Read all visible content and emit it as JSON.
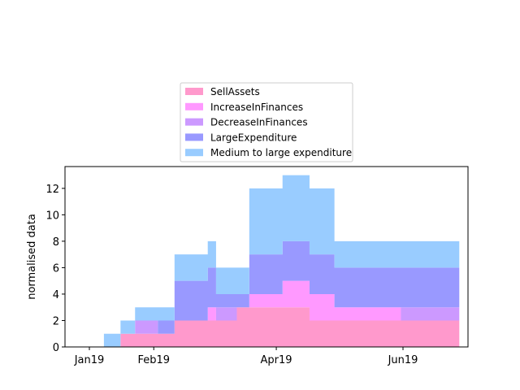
{
  "chart_data": {
    "type": "area",
    "stacked": true,
    "step": true,
    "xlabel": "",
    "ylabel": "normalised data",
    "x_ticks": [
      "Jan19",
      "Feb19",
      "Apr19",
      "Jun19"
    ],
    "y_ticks": [
      "0",
      "2",
      "4",
      "6",
      "8",
      "10",
      "12"
    ],
    "ylim": [
      0,
      13.65
    ],
    "grid": false,
    "legend_position": "above plot, centered",
    "x": [
      "2019-01-08",
      "2019-01-16",
      "2019-01-23",
      "2019-02-03",
      "2019-02-11",
      "2019-02-27",
      "2019-03-03",
      "2019-03-13",
      "2019-03-19",
      "2019-04-04",
      "2019-04-17",
      "2019-04-29",
      "2019-05-15",
      "2019-05-31",
      "2019-06-19"
    ],
    "series": [
      {
        "name": "SellAssets",
        "color": "#ff99cc",
        "values": [
          0,
          1,
          1,
          1,
          2,
          2,
          2,
          3,
          3,
          3,
          2,
          2,
          2,
          2,
          2
        ]
      },
      {
        "name": "IncreaseInFinances",
        "color": "#ff99ff",
        "values": [
          0,
          0,
          0,
          0,
          0,
          1,
          0,
          0,
          1,
          2,
          2,
          1,
          1,
          0,
          0
        ]
      },
      {
        "name": "DecreaseInFinances",
        "color": "#cc99ff",
        "values": [
          0,
          0,
          1,
          0,
          0,
          0,
          1,
          0,
          0,
          0,
          0,
          0,
          0,
          1,
          1
        ]
      },
      {
        "name": "LargeExpenditure",
        "color": "#9999ff",
        "values": [
          0,
          0,
          0,
          1,
          3,
          3,
          1,
          1,
          3,
          3,
          3,
          3,
          3,
          3,
          3
        ]
      },
      {
        "name": "Medium to large expenditure",
        "color": "#99ccff",
        "values": [
          1,
          1,
          1,
          1,
          2,
          2,
          2,
          2,
          5,
          5,
          5,
          2,
          2,
          2,
          2
        ]
      }
    ]
  }
}
